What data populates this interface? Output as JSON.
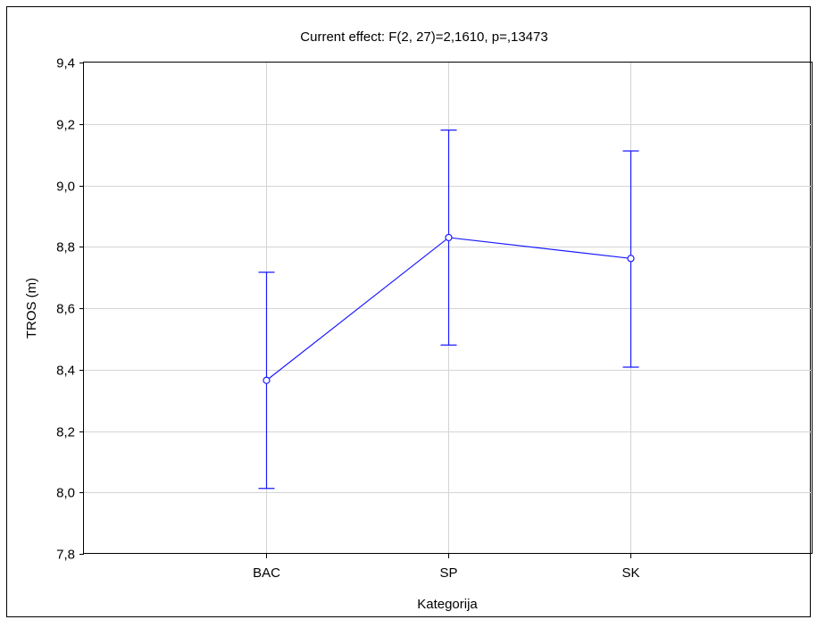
{
  "chart_data": {
    "type": "line",
    "title": "Current effect: F(2, 27)=2,1610, p=,13473",
    "xlabel": "Kategorija",
    "ylabel": "TROS (m)",
    "categories": [
      "BAC",
      "SP",
      "SK"
    ],
    "series": [
      {
        "values": [
          8.365,
          8.83,
          8.762
        ],
        "lower": [
          8.013,
          8.48,
          8.408
        ],
        "upper": [
          8.717,
          9.18,
          9.112
        ],
        "color": "#1a1aff"
      }
    ],
    "ylim": [
      7.8,
      9.4
    ],
    "yticks": [
      "7,8",
      "8,0",
      "8,2",
      "8,4",
      "8,6",
      "8,8",
      "9,0",
      "9,2",
      "9,4"
    ],
    "grid": true,
    "error_bars": true
  },
  "colors": {
    "background": "#ffffff",
    "frame": "#000000",
    "grid": "#d4d4d4",
    "series": "#1a1aff"
  }
}
